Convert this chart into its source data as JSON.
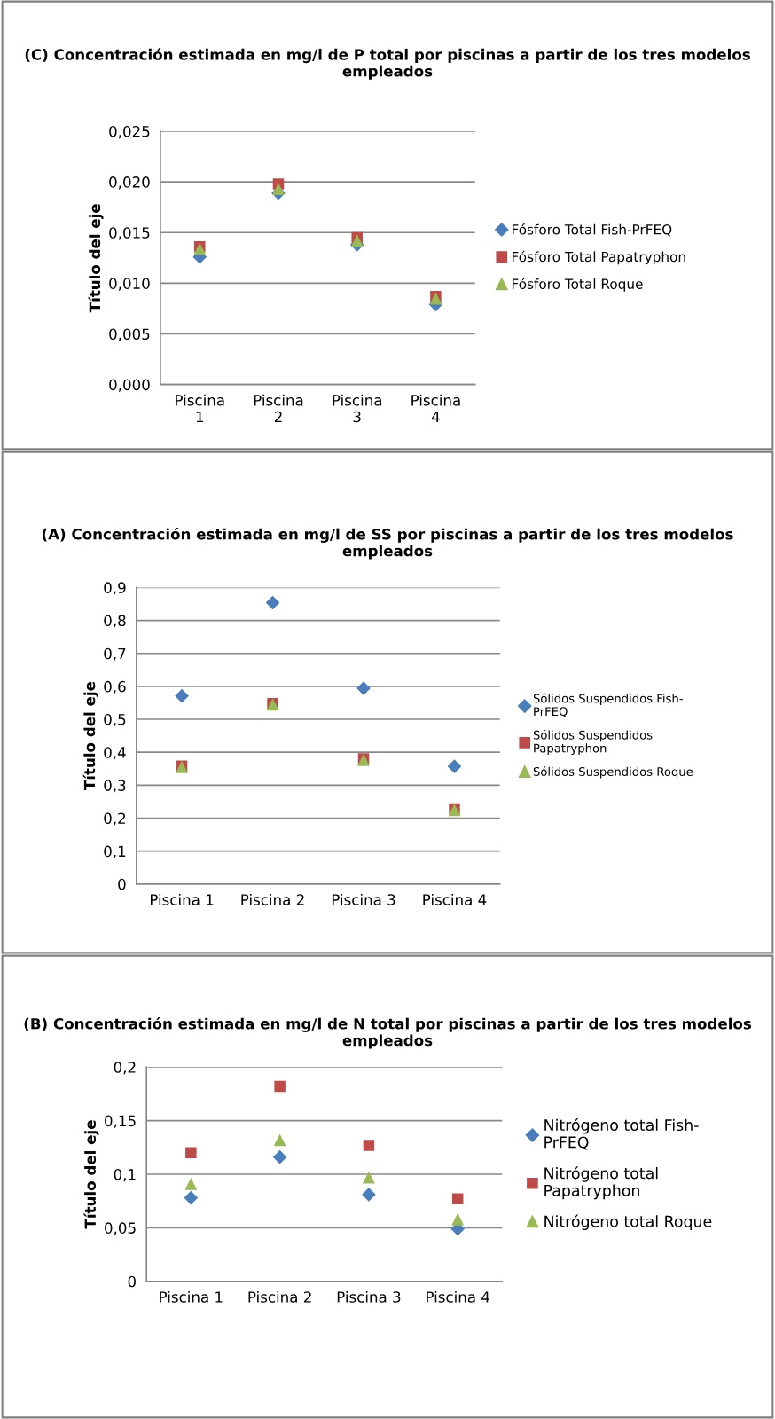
{
  "chart_data": [
    {
      "type": "scatter",
      "title": "(C) Concentración estimada en mg/l de P total por piscinas a partir de los tres modelos empleados",
      "ylabel": "Título del eje",
      "categories": [
        "Piscina 1",
        "Piscina 2",
        "Piscina 3",
        "Piscina 4"
      ],
      "ylim": [
        0,
        0.025
      ],
      "yticks": [
        {
          "value": 0,
          "label": "0,000"
        },
        {
          "value": 0.005,
          "label": "0,005"
        },
        {
          "value": 0.01,
          "label": "0,010"
        },
        {
          "value": 0.015,
          "label": "0,015"
        },
        {
          "value": 0.02,
          "label": "0,020"
        },
        {
          "value": 0.025,
          "label": "0,025"
        }
      ],
      "grid": "y",
      "legend": "right",
      "series": [
        {
          "name": "Fósforo Total Fish-PrFEQ",
          "color": "#4a7ebb",
          "marker": "diamond",
          "values": [
            0.0126,
            0.0189,
            0.0138,
            0.0079
          ]
        },
        {
          "name": "Fósforo Total Papatryphon",
          "color": "#be4b48",
          "marker": "square",
          "values": [
            0.0136,
            0.0198,
            0.0145,
            0.0087
          ]
        },
        {
          "name": "Fósforo Total Roque",
          "color": "#98b954",
          "marker": "triangle",
          "values": [
            0.0134,
            0.0193,
            0.0142,
            0.0085
          ]
        }
      ]
    },
    {
      "type": "scatter",
      "title": "(A) Concentración estimada en mg/l de SS por piscinas a partir de los tres modelos empleados",
      "ylabel": "Título del eje",
      "categories": [
        "Piscina 1",
        "Piscina 2",
        "Piscina 3",
        "Piscina 4"
      ],
      "ylim": [
        0,
        0.9
      ],
      "yticks": [
        {
          "value": 0,
          "label": "0"
        },
        {
          "value": 0.1,
          "label": "0,1"
        },
        {
          "value": 0.2,
          "label": "0,2"
        },
        {
          "value": 0.3,
          "label": "0,3"
        },
        {
          "value": 0.4,
          "label": "0,4"
        },
        {
          "value": 0.5,
          "label": "0,5"
        },
        {
          "value": 0.6,
          "label": "0,6"
        },
        {
          "value": 0.7,
          "label": "0,7"
        },
        {
          "value": 0.8,
          "label": "0,8"
        },
        {
          "value": 0.9,
          "label": "0,9"
        }
      ],
      "grid": "y",
      "legend": "right",
      "series": [
        {
          "name": "Sólidos Suspendidos Fish-PrFEQ",
          "color": "#4a7ebb",
          "marker": "diamond",
          "values": [
            0.571,
            0.854,
            0.594,
            0.357
          ]
        },
        {
          "name": "Sólidos Suspendidos Papatryphon",
          "color": "#be4b48",
          "marker": "square",
          "values": [
            0.358,
            0.548,
            0.38,
            0.228
          ]
        },
        {
          "name": "Sólidos Suspendidos Roque",
          "color": "#98b954",
          "marker": "triangle",
          "values": [
            0.355,
            0.545,
            0.377,
            0.225
          ]
        }
      ]
    },
    {
      "type": "scatter",
      "title": "(B) Concentración estimada en mg/l de N total por piscinas a partir de los tres modelos empleados",
      "ylabel": "Título del eje",
      "categories": [
        "Piscina 1",
        "Piscina 2",
        "Piscina 3",
        "Piscina 4"
      ],
      "ylim": [
        0,
        0.2
      ],
      "yticks": [
        {
          "value": 0,
          "label": "0"
        },
        {
          "value": 0.05,
          "label": "0,05"
        },
        {
          "value": 0.1,
          "label": "0,1"
        },
        {
          "value": 0.15,
          "label": "0,15"
        },
        {
          "value": 0.2,
          "label": "0,2"
        }
      ],
      "grid": "y",
      "legend": "right",
      "series": [
        {
          "name": "Nitrógeno total Fish-PrFEQ",
          "color": "#4a7ebb",
          "marker": "diamond",
          "values": [
            0.078,
            0.116,
            0.081,
            0.049
          ]
        },
        {
          "name": "Nitrógeno total Papatryphon",
          "color": "#be4b48",
          "marker": "square",
          "values": [
            0.12,
            0.182,
            0.127,
            0.077
          ]
        },
        {
          "name": "Nitrógeno total Roque",
          "color": "#98b954",
          "marker": "triangle",
          "values": [
            0.091,
            0.132,
            0.097,
            0.058
          ]
        }
      ]
    }
  ]
}
